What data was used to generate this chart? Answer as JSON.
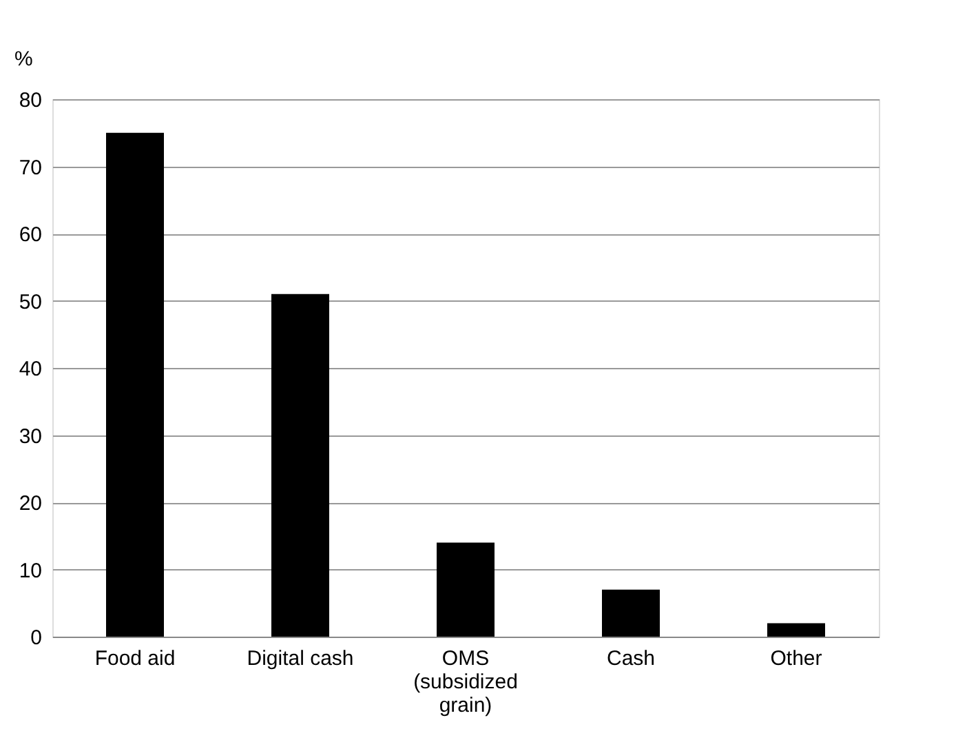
{
  "chart_data": {
    "type": "bar",
    "ylabel": "%",
    "categories": [
      "Food aid",
      "Digital cash",
      "OMS (subsidized grain)",
      "Cash",
      "Other"
    ],
    "values": [
      75,
      51,
      14,
      7,
      2
    ],
    "color": "#000000",
    "ylim": [
      0,
      80
    ],
    "yticks": [
      0,
      10,
      20,
      30,
      40,
      50,
      60,
      70,
      80
    ],
    "grid": "y"
  }
}
